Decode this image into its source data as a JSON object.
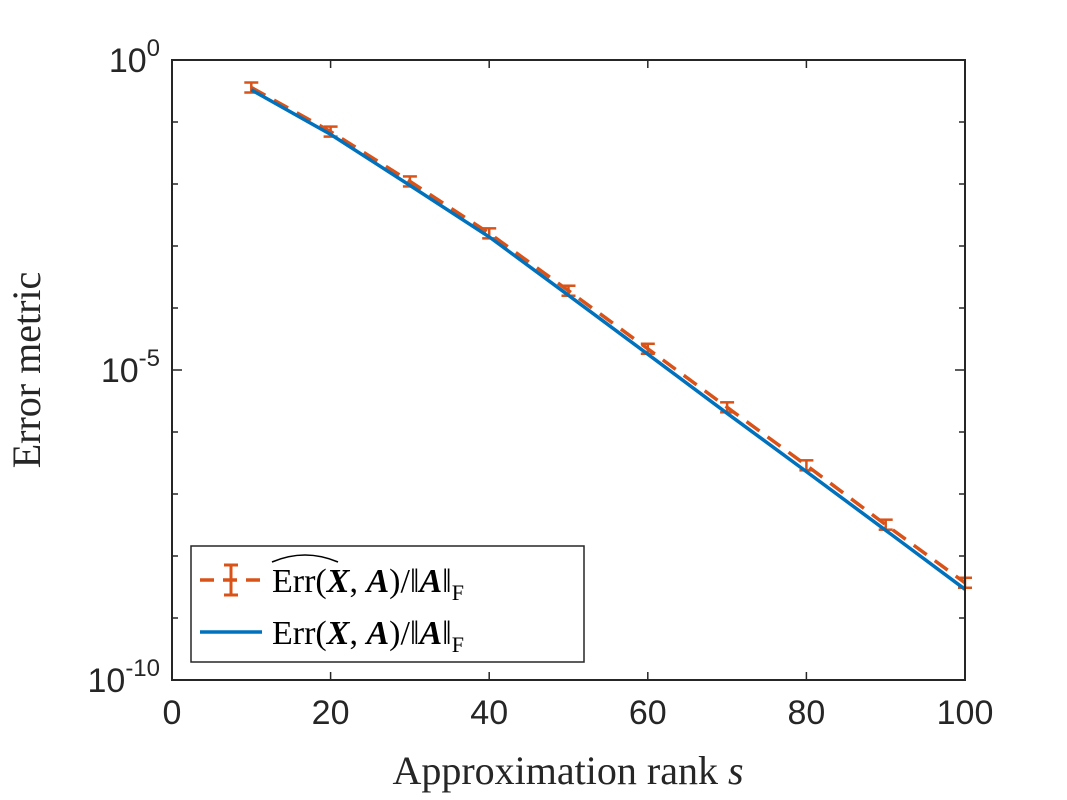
{
  "chart_data": {
    "type": "line",
    "x_axis": {
      "label": "Approximation rank s",
      "range": [
        0,
        100
      ],
      "ticks": [
        0,
        20,
        40,
        60,
        80,
        100
      ],
      "tick_labels": [
        "0",
        "20",
        "40",
        "60",
        "80",
        "100"
      ]
    },
    "y_axis": {
      "label": "Error metric",
      "scale": "log",
      "range": [
        1e-10,
        1
      ],
      "major_ticks": [
        1e-10,
        1e-05,
        1
      ],
      "tick_labels": [
        {
          "base": "10",
          "exp": "-10"
        },
        {
          "base": "10",
          "exp": "-5"
        },
        {
          "base": "10",
          "exp": "0"
        }
      ]
    },
    "grid": false,
    "legend_position": "bottom-left",
    "series": [
      {
        "name": "Err^(X, A)/||A||F",
        "style": "dashed-errorbar",
        "color": "#D95319",
        "x": [
          10,
          20,
          30,
          40,
          50,
          60,
          70,
          80,
          90,
          100
        ],
        "y": [
          0.36,
          0.07,
          0.011,
          0.0016,
          0.00019,
          2.2e-05,
          2.5e-06,
          2.9e-07,
          3.2e-08,
          3.7e-09
        ]
      },
      {
        "name": "Err(X, A)/||A||F",
        "style": "solid",
        "color": "#0072BD",
        "x": [
          10,
          20,
          30,
          40,
          50,
          60,
          70,
          80,
          90,
          100
        ],
        "y": [
          0.33,
          0.063,
          0.0095,
          0.0014,
          0.00016,
          1.8e-05,
          2e-06,
          2.3e-07,
          2.6e-08,
          2.9e-09
        ]
      }
    ],
    "legend": {
      "entry1": {
        "prefix": "Err",
        "mid1": "(",
        "bold_x": "X",
        "comma": ", ",
        "bold_a": "A",
        "mid2": ")/‖",
        "bold_a2": "A",
        "suffix": "‖",
        "sub": "F"
      },
      "entry2": {
        "prefix": "Err",
        "mid1": "(",
        "bold_x": "X",
        "comma": ", ",
        "bold_a": "A",
        "mid2": ")/‖",
        "bold_a2": "A",
        "suffix": "‖",
        "sub": "F"
      }
    }
  }
}
